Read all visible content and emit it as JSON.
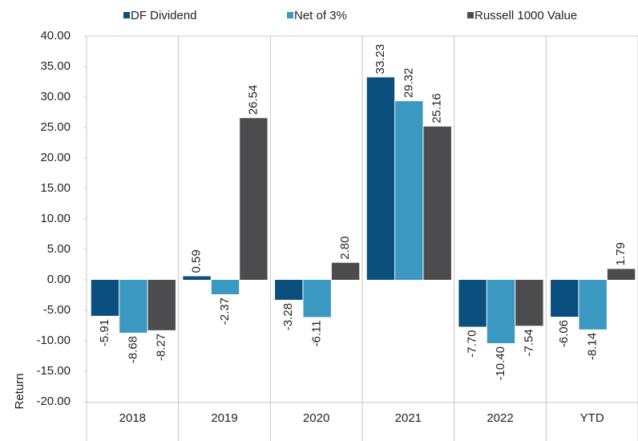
{
  "chart_data": {
    "type": "bar",
    "y_label": "Return",
    "categories": [
      "2018",
      "2019",
      "2020",
      "2021",
      "2022",
      "YTD"
    ],
    "series": [
      {
        "name": "DF Dividend",
        "color": "#0b4f7f",
        "values": [
          -5.91,
          0.59,
          -3.28,
          33.23,
          -7.7,
          -6.06
        ],
        "value_labels": [
          "-5.91",
          "0.59",
          "-3.28",
          "33.23",
          "-7.70",
          "-6.06"
        ]
      },
      {
        "name": "Net of 3%",
        "color": "#3a98c1",
        "values": [
          -8.68,
          -2.37,
          -6.11,
          29.32,
          -10.4,
          -8.14
        ],
        "value_labels": [
          "-8.68",
          "-2.37",
          "-6.11",
          "29.32",
          "-10.40",
          "-8.14"
        ]
      },
      {
        "name": "Russell 1000 Value",
        "color": "#4c4c4e",
        "values": [
          -8.27,
          26.54,
          2.8,
          25.16,
          -7.54,
          1.79
        ],
        "value_labels": [
          "-8.27",
          "26.54",
          "2.80",
          "25.16",
          "-7.54",
          "1.79"
        ]
      }
    ],
    "ylim": [
      -20,
      40
    ],
    "yticks": [
      {
        "value": -20,
        "label": "-20.00"
      },
      {
        "value": -15,
        "label": "-15.00"
      },
      {
        "value": -10,
        "label": "-10.00"
      },
      {
        "value": -5,
        "label": "-5.00"
      },
      {
        "value": 0,
        "label": "0.00"
      },
      {
        "value": 5,
        "label": "5.00"
      },
      {
        "value": 10,
        "label": "10.00"
      },
      {
        "value": 15,
        "label": "15.00"
      },
      {
        "value": 20,
        "label": "20.00"
      },
      {
        "value": 25,
        "label": "25.00"
      },
      {
        "value": 30,
        "label": "30.00"
      },
      {
        "value": 35,
        "label": "35.00"
      },
      {
        "value": 40,
        "label": "40.00"
      }
    ],
    "legend": "top"
  }
}
